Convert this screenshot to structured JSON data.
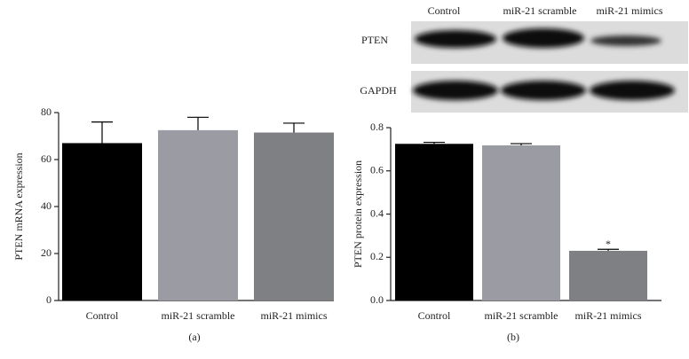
{
  "chart_data": [
    {
      "type": "bar",
      "y_label": "PTEN mRNA expression",
      "caption": "(a)",
      "categories": [
        "Control",
        "miR-21 scramble",
        "miR-21 mimics"
      ],
      "values": [
        67,
        72.5,
        71.5
      ],
      "errors": [
        9,
        5.5,
        4
      ],
      "colors": [
        "#000000",
        "#9b9ca3",
        "#7f8083"
      ],
      "ylim": [
        0,
        80
      ],
      "yticks": [
        0,
        20,
        40,
        60,
        80
      ]
    },
    {
      "type": "bar",
      "y_label": "PTEN protein expression",
      "caption": "(b)",
      "categories": [
        "Control",
        "miR-21 scramble",
        "miR-21 mimics"
      ],
      "values": [
        0.725,
        0.718,
        0.23
      ],
      "errors": [
        0.007,
        0.008,
        0.007
      ],
      "value_annotations": [
        null,
        null,
        "*"
      ],
      "colors": [
        "#000000",
        "#9b9ca3",
        "#7f8083"
      ],
      "ylim": [
        0,
        0.8
      ],
      "yticks": [
        {
          "value": 0,
          "label": "0.0"
        },
        0.2,
        0.4,
        0.6,
        0.8
      ]
    }
  ],
  "blot": {
    "lanes": [
      "Control",
      "miR-21 scramble",
      "miR-21 mimics"
    ],
    "rows": [
      "PTEN",
      "GAPDH"
    ]
  }
}
